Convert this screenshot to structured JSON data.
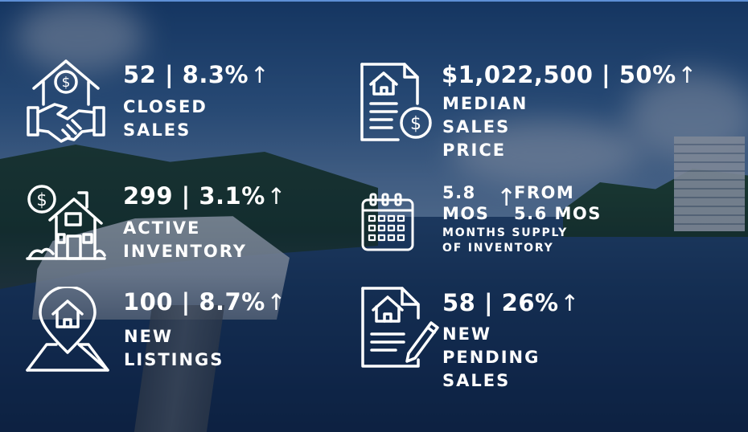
{
  "stats": {
    "closed_sales": {
      "value": "52 | 8.3%",
      "label": [
        "CLOSED",
        "SALES"
      ]
    },
    "median_price": {
      "value": "$1,022,500 | 50%",
      "label": [
        "MEDIAN",
        "SALES PRICE"
      ]
    },
    "active_inventory": {
      "value": "299 | 3.1%",
      "label": [
        "ACTIVE",
        "INVENTORY"
      ]
    },
    "months_supply": {
      "current": [
        "5.8",
        "MOS"
      ],
      "previous": [
        "FROM",
        "5.6 MOS"
      ],
      "label": [
        "MONTHS SUPPLY",
        "OF INVENTORY"
      ]
    },
    "new_listings": {
      "value": "100 | 8.7%",
      "label": [
        "NEW",
        "LISTINGS"
      ]
    },
    "new_pending": {
      "value": "58 | 26%",
      "label": [
        "NEW PENDING",
        "SALES"
      ]
    }
  },
  "arrow_glyph": "↑",
  "icons": [
    "house-handshake-dollar-icon",
    "house-document-dollar-icon",
    "house-dollar-icon",
    "calendar-icon",
    "house-location-pin-icon",
    "house-document-pen-icon"
  ]
}
